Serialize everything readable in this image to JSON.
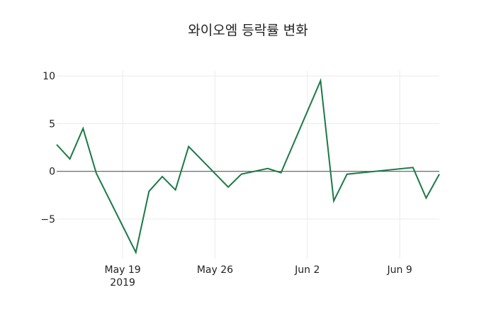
{
  "chart_data": {
    "type": "line",
    "title": "와이오엠 등락률 변화",
    "xlabel": "",
    "ylabel": "",
    "x": [
      "2019-05-14",
      "2019-05-15",
      "2019-05-16",
      "2019-05-17",
      "2019-05-20",
      "2019-05-21",
      "2019-05-22",
      "2019-05-23",
      "2019-05-24",
      "2019-05-27",
      "2019-05-28",
      "2019-05-30",
      "2019-05-31",
      "2019-06-03",
      "2019-06-04",
      "2019-06-05",
      "2019-06-10",
      "2019-06-11",
      "2019-06-12"
    ],
    "series": [
      {
        "name": "등락률",
        "color": "#1a7a45",
        "values": [
          2.8,
          1.3,
          4.5,
          -0.2,
          -8.5,
          -2.1,
          -0.55,
          -1.95,
          2.6,
          -1.65,
          -0.3,
          0.3,
          -0.15,
          9.5,
          -3.1,
          -0.3,
          0.4,
          -2.8,
          -0.3
        ]
      }
    ],
    "x_ticks": [
      {
        "date": "2019-05-19",
        "label": "May 19",
        "sublabel": "2019"
      },
      {
        "date": "2019-05-26",
        "label": "May 26",
        "sublabel": ""
      },
      {
        "date": "2019-06-02",
        "label": "Jun 2",
        "sublabel": ""
      },
      {
        "date": "2019-06-09",
        "label": "Jun 9",
        "sublabel": ""
      }
    ],
    "y_ticks": [
      {
        "value": 10,
        "label": "10"
      },
      {
        "value": 5,
        "label": "5"
      },
      {
        "value": 0,
        "label": "0"
      },
      {
        "value": -5,
        "label": "−5"
      }
    ],
    "xlim": [
      "2019-05-14",
      "2019-06-12"
    ],
    "ylim": [
      -9.2,
      10.5
    ],
    "grid": true,
    "zero_line": true,
    "legend": "none"
  }
}
